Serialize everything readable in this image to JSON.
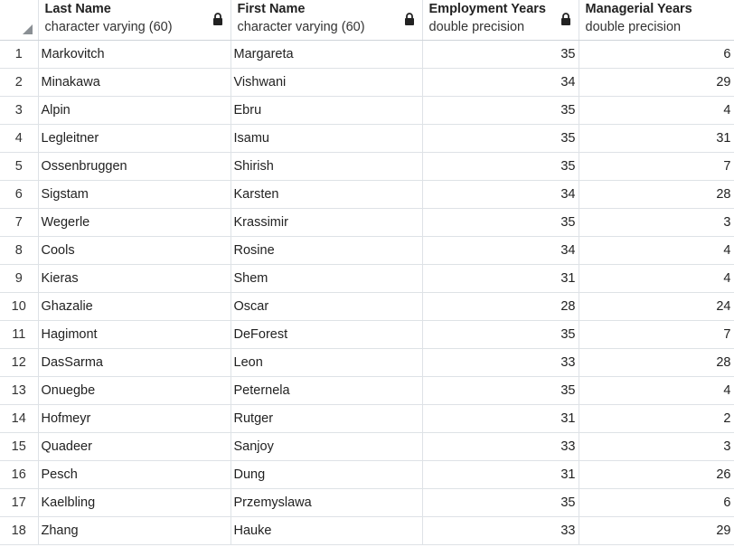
{
  "columns": [
    {
      "name": "Last Name",
      "type": "character varying (60)"
    },
    {
      "name": "First Name",
      "type": "character varying (60)"
    },
    {
      "name": "Employment Years",
      "type": "double precision"
    },
    {
      "name": "Managerial Years",
      "type": "double precision"
    }
  ],
  "rows": [
    {
      "n": "1",
      "last": "Markovitch",
      "first": "Margareta",
      "emp": "35",
      "mgr": "6"
    },
    {
      "n": "2",
      "last": "Minakawa",
      "first": "Vishwani",
      "emp": "34",
      "mgr": "29"
    },
    {
      "n": "3",
      "last": "Alpin",
      "first": "Ebru",
      "emp": "35",
      "mgr": "4"
    },
    {
      "n": "4",
      "last": "Legleitner",
      "first": "Isamu",
      "emp": "35",
      "mgr": "31"
    },
    {
      "n": "5",
      "last": "Ossenbruggen",
      "first": "Shirish",
      "emp": "35",
      "mgr": "7"
    },
    {
      "n": "6",
      "last": "Sigstam",
      "first": "Karsten",
      "emp": "34",
      "mgr": "28"
    },
    {
      "n": "7",
      "last": "Wegerle",
      "first": "Krassimir",
      "emp": "35",
      "mgr": "3"
    },
    {
      "n": "8",
      "last": "Cools",
      "first": "Rosine",
      "emp": "34",
      "mgr": "4"
    },
    {
      "n": "9",
      "last": "Kieras",
      "first": "Shem",
      "emp": "31",
      "mgr": "4"
    },
    {
      "n": "10",
      "last": "Ghazalie",
      "first": "Oscar",
      "emp": "28",
      "mgr": "24"
    },
    {
      "n": "11",
      "last": "Hagimont",
      "first": "DeForest",
      "emp": "35",
      "mgr": "7"
    },
    {
      "n": "12",
      "last": "DasSarma",
      "first": "Leon",
      "emp": "33",
      "mgr": "28"
    },
    {
      "n": "13",
      "last": "Onuegbe",
      "first": "Peternela",
      "emp": "35",
      "mgr": "4"
    },
    {
      "n": "14",
      "last": "Hofmeyr",
      "first": "Rutger",
      "emp": "31",
      "mgr": "2"
    },
    {
      "n": "15",
      "last": "Quadeer",
      "first": "Sanjoy",
      "emp": "33",
      "mgr": "3"
    },
    {
      "n": "16",
      "last": "Pesch",
      "first": "Dung",
      "emp": "31",
      "mgr": "26"
    },
    {
      "n": "17",
      "last": "Kaelbling",
      "first": "Przemyslawa",
      "emp": "35",
      "mgr": "6"
    },
    {
      "n": "18",
      "last": "Zhang",
      "first": "Hauke",
      "emp": "33",
      "mgr": "29"
    }
  ]
}
